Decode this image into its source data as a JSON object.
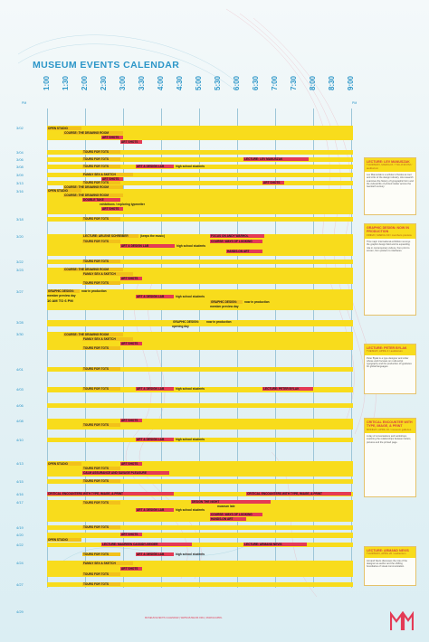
{
  "title": "MUSEUM EVENTS CALENDAR",
  "pm_left": "PM",
  "pm_right": "PM",
  "times": [
    "1:00",
    "1:30",
    "2:00",
    "2:30",
    "3:00",
    "3:30",
    "4:00",
    "4:30",
    "5:00",
    "5:30",
    "6:00",
    "6:30",
    "7:00",
    "7:30",
    "8:00",
    "8:30",
    "9:00"
  ],
  "dates": [
    "3/02",
    "3/04",
    "3/06",
    "3/08",
    "3/09",
    "3/13",
    "3/16",
    "3/18",
    "3/20",
    "3/22",
    "3/23",
    "3/27",
    "3/28",
    "3/30",
    "4/01",
    "4/03",
    "4/06",
    "4/08",
    "4/10",
    "4/13",
    "4/15",
    "4/16",
    "4/17",
    "4/19",
    "4/20",
    "4/22",
    "4/24",
    "4/27",
    "4/29"
  ],
  "bars": {
    "open_studio_1": "OPEN STUDIO",
    "drawing_room_1": "COURSE: THE DRAWING ROOM",
    "art_shots_1": "ART SHOTS",
    "art_shots_2": "ART SHOTS",
    "tours_1": "TOURS FOR TOTS",
    "tours_2": "TOURS FOR TOTS",
    "lecture_manuszak": "LECTURE: LEV MANUSZAK",
    "tours_3": "TOURS FOR TOTS",
    "art_design_lab_1": "ART & DESIGN LAB",
    "high_school_1": "high school students",
    "family_sex_1": "FAMILY SEX & SKETCH",
    "art_shots_3": "ART SHOTS",
    "tours_4": "TOURS FOR TOTS",
    "drawing_room_2": "COURSE: THE DRAWING ROOM",
    "art_shots_4": "ART SHOTS",
    "open_studio_2": "OPEN STUDIO",
    "drawing_room_3": "COURSE: THE DRAWING ROOM",
    "double_take": "DOUBLE TAKE",
    "double_take_note": "exhibitions / exploring typewriter",
    "art_shots_5": "ART SHOTS",
    "tours_5": "TOURS FOR TOTS",
    "lecture_schreiber": "LECTURE: ARLENE SCHREIBER",
    "lecture_schreiber_note": "(keeps the music)",
    "focus_warhol": "FOCUS ON ANDY WARHOL",
    "tours_6": "TOURS FOR TOTS",
    "art_design_lab_2": "ART & DESIGN LAB",
    "high_school_2": "high school students",
    "course_ways": "COURSE: WAYS OF LOOKING",
    "hands_on_art_1": "HANDS-ON ART",
    "tours_7": "TOURS FOR TOTS",
    "drawing_room_4": "COURSE: THE DRAWING ROOM",
    "family_sex_2": "FAMILY SEX & SKETCH",
    "art_shots_6": "ART SHOTS",
    "tours_8": "TOURS FOR TOTS",
    "graphic_design_1": "GRAPHIC DESIGN:",
    "graphic_design_1_note": "now in production",
    "member_preview_1": "member preview day",
    "member_hours": "10 AM TO 6 PM",
    "art_design_lab_3": "ART & DESIGN LAB",
    "high_school_3": "high school students",
    "graphic_design_2": "GRAPHIC DESIGN:",
    "graphic_design_2_note": "now in production",
    "member_preview_2": "member preview day",
    "graphic_design_3": "GRAPHIC DESIGN:",
    "graphic_design_3_note": "now in production",
    "opening_day": "opening day",
    "drawing_room_5": "COURSE: THE DRAWING ROOM",
    "family_sex_3": "FAMILY SEX & SKETCH",
    "art_shots_7": "ART SHOTS",
    "tours_9": "TOURS FOR TOTS",
    "tours_10": "TOURS FOR TOTS",
    "art_design_lab_4": "ART & DESIGN LAB",
    "high_school_4": "high school students",
    "lecture_byl": "LECTURE: PETER BYLAK",
    "tours_11": "TOURS FOR TOTS",
    "art_shots_8": "ART SHOTS",
    "tours_12": "TOURS FOR TOTS",
    "art_design_lab_5": "ART & DESIGN LAB",
    "high_school_5": "high school students",
    "open_studio_3": "OPEN STUDIO",
    "art_shots_9": "ART SHOTS",
    "tours_13": "TOURS FOR TOTS",
    "calm_assurance": "CALM ASSURANCE AND SAVAGE PLEASURE",
    "tours_14": "TOURS FOR TOTS",
    "critical_1": "CRITICAL ENCOUNTERS WITH TYPE, IMAGE, & PRINT",
    "critical_2": "CRITICAL ENCOUNTERS WITH TYPE, IMAGE, & PRINT",
    "design_night": "DESIGN THE NIGHT",
    "design_night_note": "museum late",
    "tours_15": "TOURS FOR TOTS",
    "art_design_lab_6": "ART & DESIGN LAB",
    "high_school_6": "high school students",
    "course_ways_2": "COURSE: WAYS OF LOOKING",
    "hands_on_art_2": "HANDS-ON ART",
    "tours_16": "TOURS FOR TOTS",
    "art_shots_10": "ART SHOTS",
    "open_studio_4": "OPEN STUDIO",
    "lecture_cassidy": "LECTURE: MAUREEN CASSIDY-GEIGER",
    "lecture_nevis": "LECTURE: ARMAND NEVIS",
    "tours_17": "TOURS FOR TOTS",
    "art_design_lab_7": "ART & DESIGN LAB",
    "high_school_7": "high school students",
    "family_sex_4": "FAMILY SEX & SKETCH",
    "art_shots_11": "ART SHOTS",
    "tours_18": "TOURS FOR TOTS",
    "tours_19": "TOURS FOR TOTS"
  },
  "sidebar": [
    {
      "title": "LECTURE: LEV MANUSZAK",
      "meta": "THURSDAY, MARCH 8 / 7:00–8:30 PM / auditorium",
      "body": "Lev Manuszak is a scholar of books as tool and critic of the design industry. His research examines the history of typographic form and the cultural life of printed matter across the twentieth century."
    },
    {
      "title": "GRAPHIC DESIGN: NOW IN PRODUCTION",
      "meta": "FRIDAY, MARCH 30 / members preview",
      "body": "This major international exhibition surveys the graphic design field and its expanding role in contemporary culture, from print to screen, from posters to interfaces."
    },
    {
      "title": "LECTURE: PETER BYLAK",
      "meta": "TUESDAY, APRIL 3 / auditorium",
      "body": "Peter Bylak is a type designer and writer whose work focuses on multi-script typography and the production of typefaces for global languages."
    },
    {
      "title": "CRITICAL ENCOUNTER WITH TYPE, IMAGE, & PRINT",
      "meta": "MONDAY, APRIL 16 / museum galleries",
      "body": "A day of conversations and workshops exploring the relationships between letters, pictures and the printed page."
    },
    {
      "title": "LECTURE: ARMAND NEVIS",
      "meta": "THURSDAY, APRIL 26 / auditorium",
      "body": "Armand Nevis discusses the role of the designer as author and the shifting boundaries of visual communication."
    }
  ],
  "footer": "MUSEUM EVENTS CALENDAR  |  WWW.MUSEUM.ORG  |  MARCH/APRIL",
  "colors": {
    "yellow": "#f8dc1c",
    "red": "#e43a55",
    "blue": "#2c96c8"
  }
}
